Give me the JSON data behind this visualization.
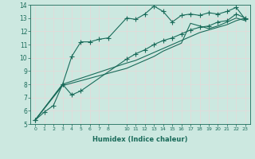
{
  "xlabel": "Humidex (Indice chaleur)",
  "bg_color": "#cce8e0",
  "line_color": "#1a6b5a",
  "grid_color": "#e8d8d8",
  "xlim": [
    -0.5,
    23.5
  ],
  "ylim": [
    5,
    14
  ],
  "xticks": [
    0,
    1,
    2,
    3,
    4,
    5,
    6,
    7,
    8,
    10,
    11,
    12,
    13,
    14,
    15,
    16,
    17,
    18,
    19,
    20,
    21,
    22,
    23
  ],
  "yticks": [
    5,
    6,
    7,
    8,
    9,
    10,
    11,
    12,
    13,
    14
  ],
  "line1_x": [
    0,
    1,
    2,
    3,
    4,
    5,
    6,
    7,
    8,
    10,
    11,
    12,
    13,
    14,
    15,
    16,
    17,
    18,
    19,
    20,
    21,
    22,
    23
  ],
  "line1_y": [
    5.3,
    5.9,
    6.4,
    8.0,
    10.1,
    11.2,
    11.2,
    11.4,
    11.5,
    13.0,
    12.9,
    13.3,
    13.9,
    13.5,
    12.7,
    13.2,
    13.3,
    13.2,
    13.4,
    13.3,
    13.5,
    13.8,
    12.9
  ],
  "line2_x": [
    0,
    3,
    4,
    5,
    10,
    11,
    12,
    13,
    14,
    15,
    16,
    17,
    18,
    19,
    20,
    21,
    22,
    23
  ],
  "line2_y": [
    5.3,
    8.0,
    7.2,
    7.5,
    9.9,
    10.3,
    10.6,
    11.0,
    11.3,
    11.5,
    11.8,
    12.1,
    12.3,
    12.4,
    12.7,
    12.8,
    13.3,
    13.0
  ],
  "line3_x": [
    0,
    3,
    10,
    11,
    12,
    13,
    14,
    15,
    16,
    17,
    18,
    19,
    20,
    21,
    22,
    23
  ],
  "line3_y": [
    5.3,
    8.0,
    9.6,
    9.8,
    10.1,
    10.4,
    10.7,
    11.0,
    11.3,
    11.6,
    11.9,
    12.1,
    12.3,
    12.5,
    12.8,
    13.0
  ],
  "line4_x": [
    0,
    3,
    10,
    11,
    12,
    13,
    14,
    15,
    16,
    17,
    18,
    19,
    20,
    21,
    22,
    23
  ],
  "line4_y": [
    5.3,
    7.9,
    9.2,
    9.5,
    9.8,
    10.1,
    10.5,
    10.8,
    11.1,
    12.6,
    12.4,
    12.2,
    12.4,
    12.7,
    13.0,
    12.8
  ]
}
